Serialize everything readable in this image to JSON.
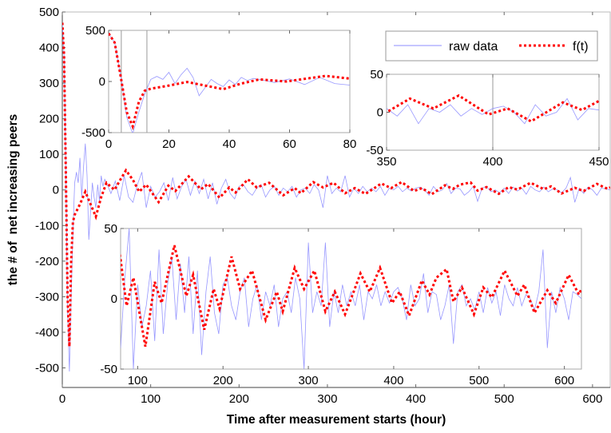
{
  "chart_data": {
    "type": "line",
    "xlabel": "Time after measurement starts (hour)",
    "ylabel": "the # of  net increasing peers",
    "legend": {
      "placement": "top-right",
      "entries": [
        "raw data",
        "f(t)"
      ]
    },
    "colors": {
      "raw data": "#8c8cff",
      "f(t)": "#ff0000"
    },
    "grid": false,
    "series": [
      {
        "name": "raw data",
        "style": "thin solid",
        "points": [
          [
            0,
            470
          ],
          [
            2,
            380
          ],
          [
            4,
            60
          ],
          [
            6,
            -350
          ],
          [
            8,
            -510
          ],
          [
            10,
            -300
          ],
          [
            12,
            -120
          ],
          [
            14,
            20
          ],
          [
            16,
            50
          ],
          [
            18,
            20
          ],
          [
            20,
            90
          ],
          [
            22,
            -20
          ],
          [
            24,
            65
          ],
          [
            26,
            130
          ],
          [
            28,
            40
          ],
          [
            30,
            -140
          ],
          [
            32,
            -60
          ],
          [
            34,
            20
          ],
          [
            36,
            -20
          ],
          [
            38,
            -50
          ],
          [
            40,
            15
          ],
          [
            42,
            -30
          ],
          [
            44,
            40
          ],
          [
            46,
            10
          ],
          [
            48,
            30
          ],
          [
            50,
            20
          ],
          [
            55,
            -10
          ],
          [
            60,
            25
          ],
          [
            65,
            -30
          ],
          [
            70,
            40
          ],
          [
            75,
            -20
          ],
          [
            80,
            -35
          ],
          [
            85,
            15
          ],
          [
            90,
            50
          ],
          [
            95,
            -50
          ],
          [
            100,
            10
          ],
          [
            105,
            -20
          ],
          [
            110,
            -5
          ],
          [
            115,
            20
          ],
          [
            120,
            -30
          ],
          [
            125,
            35
          ],
          [
            130,
            -25
          ],
          [
            135,
            10
          ],
          [
            140,
            30
          ],
          [
            145,
            -15
          ],
          [
            150,
            25
          ],
          [
            155,
            -10
          ],
          [
            160,
            30
          ],
          [
            165,
            -25
          ],
          [
            170,
            20
          ],
          [
            175,
            -40
          ],
          [
            180,
            5
          ],
          [
            185,
            30
          ],
          [
            190,
            -10
          ],
          [
            195,
            -25
          ],
          [
            200,
            10
          ],
          [
            205,
            15
          ],
          [
            210,
            -5
          ],
          [
            215,
            -15
          ],
          [
            220,
            5
          ],
          [
            225,
            15
          ],
          [
            230,
            -20
          ],
          [
            235,
            0
          ],
          [
            240,
            10
          ],
          [
            245,
            -15
          ],
          [
            250,
            5
          ],
          [
            255,
            -5
          ],
          [
            260,
            10
          ],
          [
            265,
            -20
          ],
          [
            270,
            0
          ],
          [
            275,
            5
          ],
          [
            280,
            -10
          ],
          [
            285,
            15
          ],
          [
            290,
            0
          ],
          [
            295,
            -50
          ],
          [
            300,
            40
          ],
          [
            305,
            -10
          ],
          [
            310,
            5
          ],
          [
            315,
            -5
          ],
          [
            320,
            40
          ],
          [
            325,
            -20
          ],
          [
            330,
            5
          ],
          [
            335,
            -10
          ],
          [
            340,
            10
          ],
          [
            345,
            -5
          ],
          [
            350,
            5
          ],
          [
            355,
            -5
          ],
          [
            360,
            10
          ],
          [
            365,
            -15
          ],
          [
            370,
            5
          ],
          [
            375,
            0
          ],
          [
            380,
            10
          ],
          [
            385,
            -5
          ],
          [
            390,
            5
          ],
          [
            395,
            -3
          ],
          [
            400,
            5
          ],
          [
            405,
            8
          ],
          [
            410,
            0
          ],
          [
            415,
            -15
          ],
          [
            420,
            10
          ],
          [
            425,
            -5
          ],
          [
            430,
            0
          ],
          [
            435,
            18
          ],
          [
            440,
            -10
          ],
          [
            445,
            5
          ],
          [
            450,
            3
          ],
          [
            455,
            -15
          ],
          [
            460,
            -5
          ],
          [
            465,
            10
          ],
          [
            470,
            -32
          ],
          [
            475,
            5
          ],
          [
            480,
            10
          ],
          [
            485,
            -5
          ],
          [
            490,
            0
          ],
          [
            495,
            -8
          ],
          [
            500,
            5
          ],
          [
            505,
            -10
          ],
          [
            510,
            8
          ],
          [
            515,
            -3
          ],
          [
            520,
            5
          ],
          [
            525,
            -12
          ],
          [
            530,
            10
          ],
          [
            535,
            0
          ],
          [
            540,
            -5
          ],
          [
            545,
            8
          ],
          [
            550,
            -5
          ],
          [
            555,
            3
          ],
          [
            560,
            0
          ],
          [
            565,
            -8
          ],
          [
            570,
            5
          ],
          [
            575,
            35
          ],
          [
            580,
            -35
          ],
          [
            585,
            5
          ],
          [
            590,
            -10
          ],
          [
            595,
            8
          ],
          [
            600,
            0
          ],
          [
            605,
            -15
          ],
          [
            610,
            5
          ],
          [
            615,
            3
          ],
          [
            620,
            0
          ]
        ]
      },
      {
        "name": "f(t)",
        "style": "thick dotted",
        "points": [
          [
            0,
            470
          ],
          [
            2,
            380
          ],
          [
            4,
            50
          ],
          [
            6,
            -300
          ],
          [
            8,
            -440
          ],
          [
            10,
            -200
          ],
          [
            12,
            -90
          ],
          [
            14,
            -70
          ],
          [
            20,
            -40
          ],
          [
            26,
            -5
          ],
          [
            32,
            -40
          ],
          [
            38,
            -75
          ],
          [
            44,
            -20
          ],
          [
            50,
            20
          ],
          [
            59,
            0
          ],
          [
            66,
            30
          ],
          [
            72,
            55
          ],
          [
            80,
            28
          ],
          [
            87,
            -5
          ],
          [
            95,
            15
          ],
          [
            109,
            -34
          ],
          [
            120,
            12
          ],
          [
            128,
            -3
          ],
          [
            143,
            38
          ],
          [
            157,
            2
          ],
          [
            165,
            17
          ],
          [
            178,
            -22
          ],
          [
            189,
            7
          ],
          [
            196,
            -7
          ],
          [
            210,
            30
          ],
          [
            220,
            7
          ],
          [
            234,
            20
          ],
          [
            250,
            -15
          ],
          [
            263,
            5
          ],
          [
            270,
            -9
          ],
          [
            284,
            22
          ],
          [
            295,
            7
          ],
          [
            307,
            20
          ],
          [
            320,
            -9
          ],
          [
            331,
            5
          ],
          [
            343,
            -11
          ],
          [
            350,
            0
          ],
          [
            361,
            18
          ],
          [
            372,
            5
          ],
          [
            384,
            22
          ],
          [
            398,
            -3
          ],
          [
            407,
            5
          ],
          [
            418,
            -12
          ],
          [
            433,
            13
          ],
          [
            442,
            3
          ],
          [
            450,
            15
          ],
          [
            462,
            21
          ],
          [
            470,
            -2
          ],
          [
            480,
            8
          ],
          [
            494,
            -11
          ],
          [
            505,
            8
          ],
          [
            515,
            1
          ],
          [
            530,
            20
          ],
          [
            545,
            2
          ],
          [
            553,
            10
          ],
          [
            565,
            -10
          ],
          [
            580,
            6
          ],
          [
            590,
            -3
          ],
          [
            605,
            17
          ],
          [
            617,
            3
          ],
          [
            620,
            7
          ]
        ]
      }
    ],
    "panels": {
      "main": {
        "xlim": [
          0,
          620
        ],
        "ylim": [
          -555,
          500
        ],
        "xticks": [
          0,
          100,
          200,
          300,
          400,
          500,
          600
        ],
        "yticks": [
          -500,
          -400,
          -300,
          -200,
          -100,
          0,
          100,
          200,
          300,
          400,
          500
        ],
        "xtick_labels": [
          "0",
          "100",
          "200",
          "300",
          "400",
          "500",
          "600"
        ],
        "ytick_labels": [
          "-500",
          "-400",
          "-300",
          "-200",
          "-100",
          "0",
          "100",
          "200",
          "300",
          "400",
          "500"
        ]
      },
      "inset1": {
        "xlim": [
          0,
          80
        ],
        "ylim": [
          -500,
          500
        ],
        "xticks": [
          0,
          20,
          40,
          60,
          80
        ],
        "yticks": [
          -500,
          0,
          500
        ],
        "xtick_labels": [
          "0",
          "20",
          "40",
          "60",
          "80"
        ],
        "ytick_labels": [
          "-500",
          "0",
          "500"
        ],
        "markers": [
          4.2,
          12.7
        ]
      },
      "inset2": {
        "xlim": [
          350,
          450
        ],
        "ylim": [
          -50,
          50
        ],
        "xticks": [
          350,
          400,
          450
        ],
        "yticks": [
          -50,
          0,
          50
        ],
        "xtick_labels": [
          "350",
          "400",
          "450"
        ],
        "ytick_labels": [
          "-50",
          "0",
          "50"
        ],
        "markers": [
          400
        ]
      },
      "inset3": {
        "xlim": [
          80,
          620
        ],
        "ylim": [
          -50,
          50
        ],
        "xticks": [
          100,
          200,
          300,
          400,
          500,
          600
        ],
        "yticks": [
          -50,
          0,
          50
        ],
        "xtick_labels": [
          "100",
          "200",
          "300",
          "400",
          "500",
          "600"
        ],
        "ytick_labels": [
          "-50",
          "0",
          "50"
        ],
        "markers": []
      }
    }
  }
}
